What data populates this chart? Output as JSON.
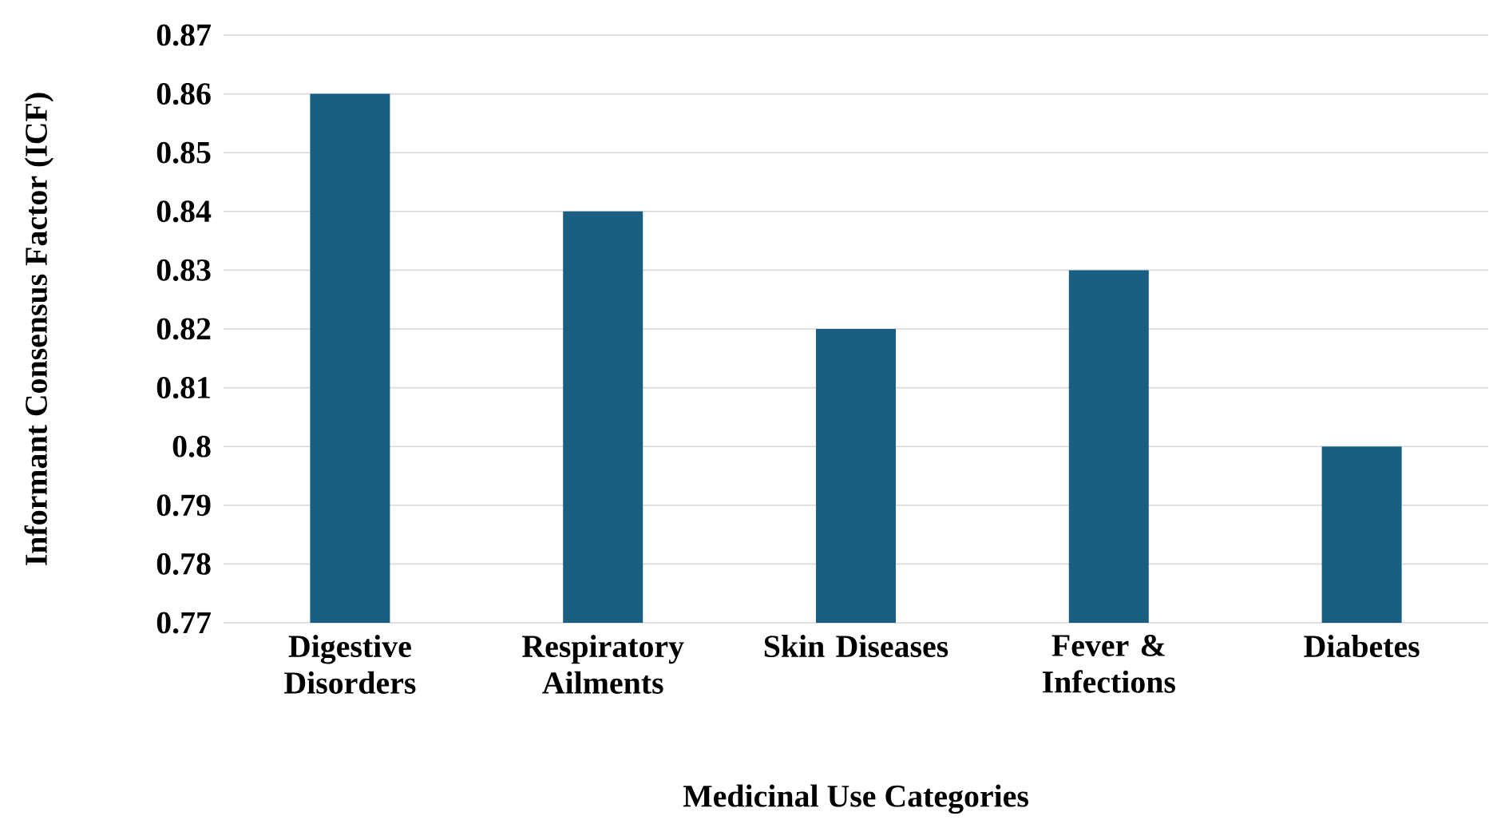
{
  "chart_data": {
    "type": "bar",
    "xlabel": "Medicinal Use Categories",
    "ylabel": "Informant Consensus Factor (ICF)",
    "categories": [
      "Digestive Disorders",
      "Respiratory Ailments",
      "Skin Diseases",
      "Fever & Infections",
      "Diabetes"
    ],
    "values": [
      0.86,
      0.84,
      0.82,
      0.83,
      0.8
    ],
    "color": "#195f81",
    "ylim": [
      0.77,
      0.87
    ],
    "yticks": [
      0.77,
      0.78,
      0.79,
      0.8,
      0.81,
      0.82,
      0.83,
      0.84,
      0.85,
      0.86,
      0.87
    ],
    "grid": "y"
  }
}
